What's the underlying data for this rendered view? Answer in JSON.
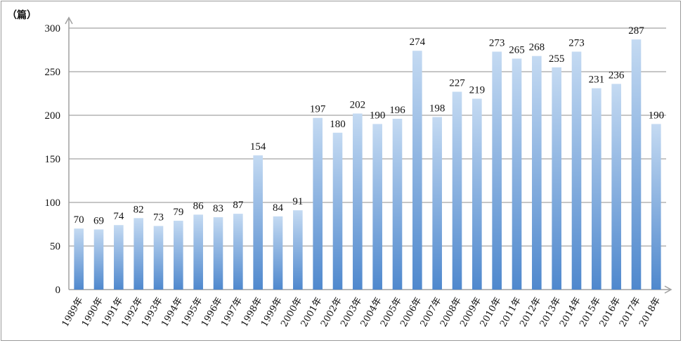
{
  "chart_data": {
    "type": "bar",
    "unit_label": "（篇）",
    "categories": [
      "1989年",
      "1990年",
      "1991年",
      "1992年",
      "1993年",
      "1994年",
      "1995年",
      "1996年",
      "1997年",
      "1998年",
      "1999年",
      "2000年",
      "2001年",
      "2002年",
      "2003年",
      "2004年",
      "2005年",
      "2006年",
      "2007年",
      "2008年",
      "2009年",
      "2010年",
      "2011年",
      "2012年",
      "2013年",
      "2014年",
      "2015年",
      "2016年",
      "2017年",
      "2018年"
    ],
    "values": [
      70,
      69,
      74,
      82,
      73,
      79,
      86,
      83,
      87,
      154,
      84,
      91,
      197,
      180,
      202,
      190,
      196,
      274,
      198,
      227,
      219,
      273,
      265,
      268,
      255,
      273,
      231,
      236,
      287,
      190
    ],
    "ylim": [
      0,
      300
    ],
    "yticks": [
      0,
      50,
      100,
      150,
      200,
      250,
      300
    ],
    "grid": true,
    "colors": {
      "bar_top": "#c4daf2",
      "bar_bottom": "#4f88cd",
      "grid": "#8c8c8c",
      "axis": "#a0a0a0"
    }
  }
}
